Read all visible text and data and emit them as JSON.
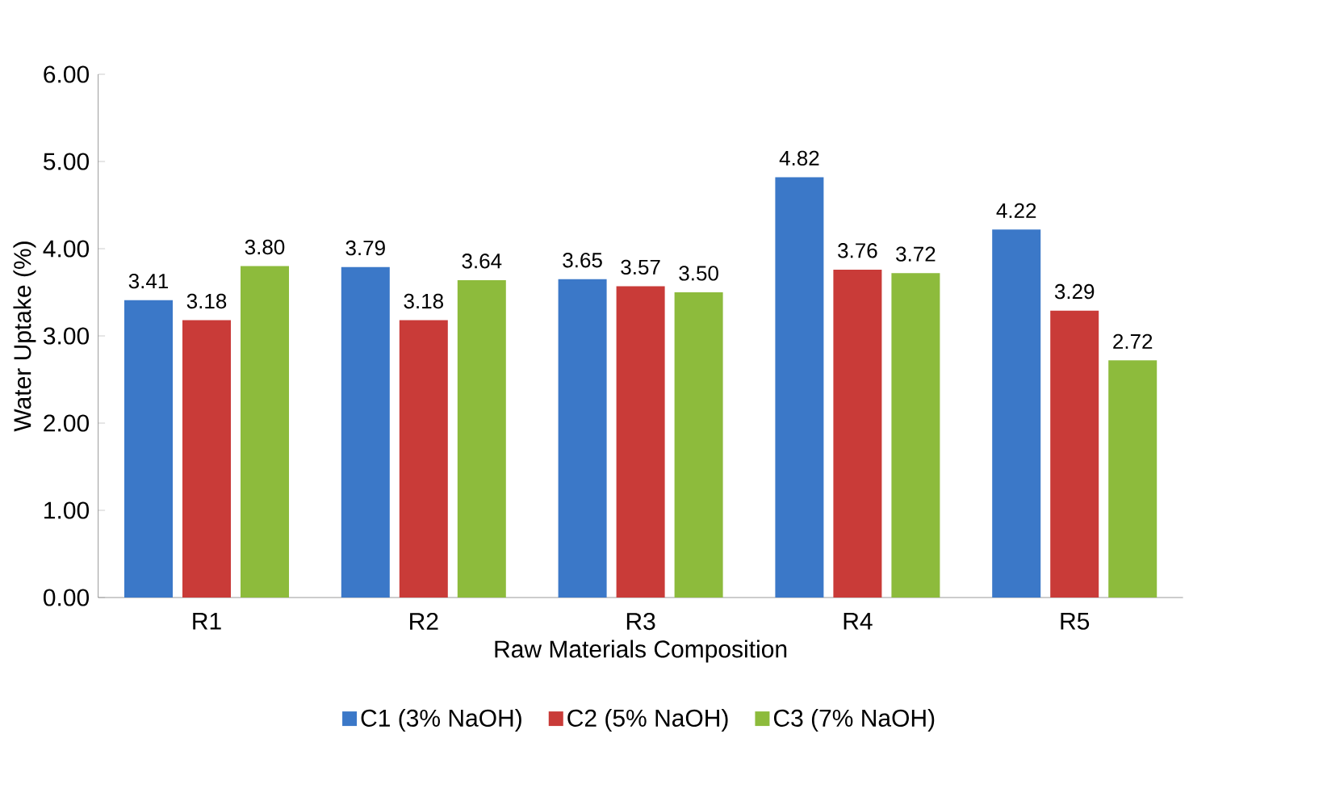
{
  "chart_data": {
    "type": "bar",
    "xlabel": "Raw Materials Composition",
    "ylabel": "Water Uptake (%)",
    "categories": [
      "R1",
      "R2",
      "R3",
      "R4",
      "R5"
    ],
    "series": [
      {
        "name": "C1 (3% NaOH)",
        "color": "#3b78c8",
        "values": [
          3.41,
          3.79,
          3.65,
          4.82,
          4.22
        ],
        "value_labels": [
          "3.41",
          "3.79",
          "3.65",
          "4.82",
          "4.22"
        ]
      },
      {
        "name": "C2 (5% NaOH)",
        "color": "#c93b38",
        "values": [
          3.18,
          3.18,
          3.57,
          3.76,
          3.29
        ],
        "value_labels": [
          "3.18",
          "3.18",
          "3.57",
          "3.76",
          "3.29"
        ]
      },
      {
        "name": "C3 (7% NaOH)",
        "color": "#8dbb3c",
        "values": [
          3.8,
          3.64,
          3.5,
          3.72,
          2.72
        ],
        "value_labels": [
          "3.80",
          "3.64",
          "3.50",
          "3.72",
          "2.72"
        ]
      }
    ],
    "ylim": [
      0,
      6
    ],
    "yticks": [
      {
        "value": 0,
        "label": "0.00"
      },
      {
        "value": 1,
        "label": "1.00"
      },
      {
        "value": 2,
        "label": "2.00"
      },
      {
        "value": 3,
        "label": "3.00"
      },
      {
        "value": 4,
        "label": "4.00"
      },
      {
        "value": 5,
        "label": "5.00"
      },
      {
        "value": 6,
        "label": "6.00"
      }
    ],
    "legend": "bottom",
    "grid": false
  }
}
